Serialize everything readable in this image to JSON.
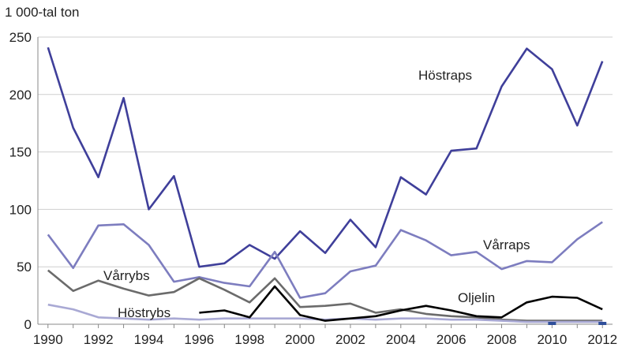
{
  "chart_data": {
    "type": "line",
    "ylabel": "1 000-tal ton",
    "xlim": [
      1989.6,
      2012.4
    ],
    "ylim": [
      0,
      250
    ],
    "y_ticks": [
      0,
      50,
      100,
      150,
      200,
      250
    ],
    "x_ticks": [
      1990,
      1992,
      1994,
      1996,
      1998,
      2000,
      2002,
      2004,
      2006,
      2008,
      2010,
      2012
    ],
    "grid": true,
    "series": [
      {
        "name": "Höstraps",
        "color": "#3f3f9a",
        "x": [
          1990,
          1991,
          1992,
          1993,
          1994,
          1995,
          1996,
          1997,
          1998,
          1999,
          2000,
          2001,
          2002,
          2003,
          2004,
          2005,
          2006,
          2007,
          2008,
          2009,
          2010,
          2011,
          2012
        ],
        "values": [
          241,
          171,
          128,
          197,
          100,
          129,
          50,
          53,
          69,
          57,
          81,
          62,
          91,
          67,
          128,
          113,
          151,
          153,
          207,
          240,
          222,
          173,
          229
        ]
      },
      {
        "name": "Vårraps",
        "color": "#7d7dbf",
        "x": [
          1990,
          1991,
          1992,
          1993,
          1994,
          1995,
          1996,
          1997,
          1998,
          1999,
          2000,
          2001,
          2002,
          2003,
          2004,
          2005,
          2006,
          2007,
          2008,
          2009,
          2010,
          2011,
          2012
        ],
        "values": [
          78,
          49,
          86,
          87,
          69,
          37,
          41,
          36,
          33,
          63,
          23,
          27,
          46,
          51,
          82,
          73,
          60,
          63,
          48,
          55,
          54,
          74,
          89
        ]
      },
      {
        "name": "Vårrybs",
        "color": "#6b6b6b",
        "x": [
          1990,
          1991,
          1992,
          1993,
          1994,
          1995,
          1996,
          1997,
          1998,
          1999,
          2000,
          2001,
          2002,
          2003,
          2004,
          2005,
          2006,
          2007,
          2008,
          2009,
          2010,
          2011,
          2012
        ],
        "values": [
          47,
          29,
          38,
          31,
          25,
          28,
          40,
          30,
          19,
          40,
          15,
          16,
          18,
          10,
          13,
          9,
          7,
          6,
          4,
          3,
          3,
          3,
          3
        ]
      },
      {
        "name": "Höstrybs",
        "color": "#a9a9d4",
        "x": [
          1990,
          1991,
          1992,
          1993,
          1994,
          1995,
          1996,
          1997,
          1998,
          1999,
          2000,
          2001,
          2002,
          2003,
          2004,
          2005,
          2006,
          2007,
          2008,
          2009,
          2010,
          2011,
          2012
        ],
        "values": [
          17,
          13,
          6,
          5,
          4,
          5,
          4,
          5,
          5,
          5,
          5,
          4,
          5,
          4,
          5,
          5,
          4,
          4,
          3,
          2,
          2,
          2,
          2
        ]
      },
      {
        "name": "Oljelin",
        "color": "#000000",
        "x": [
          1996,
          1997,
          1998,
          1999,
          2000,
          2001,
          2002,
          2003,
          2004,
          2005,
          2006,
          2007,
          2008,
          2009,
          2010,
          2011,
          2012
        ],
        "values": [
          10,
          12,
          6,
          33,
          8,
          3,
          5,
          7,
          12,
          16,
          12,
          7,
          6,
          19,
          24,
          23,
          13
        ]
      }
    ],
    "annotations": [
      {
        "series": "Höstraps",
        "text": "Höstraps"
      },
      {
        "series": "Vårraps",
        "text": "Vårraps"
      },
      {
        "series": "Vårrybs",
        "text": "Vårrybs"
      },
      {
        "series": "Höstrybs",
        "text": "Höstrybs"
      },
      {
        "series": "Oljelin",
        "text": "Oljelin"
      }
    ]
  }
}
